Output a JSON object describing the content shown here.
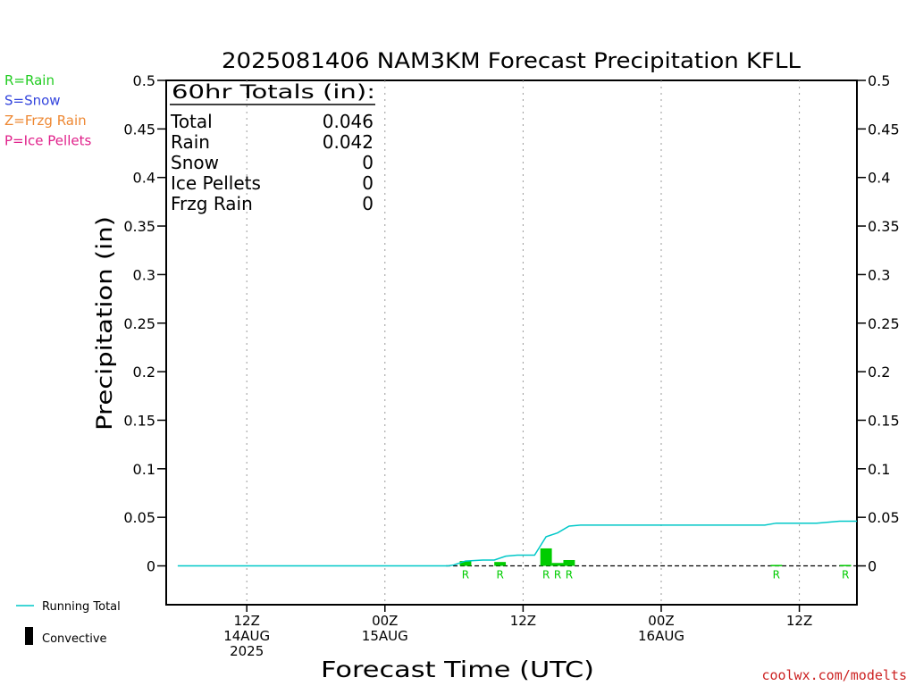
{
  "chart_data": {
    "type": "bar",
    "title": "2025081406 NAM3KM Forecast Precipitation KFLL",
    "xlabel": "Forecast Time (UTC)",
    "ylabel": "Precipitation (in)",
    "ylim": [
      -0.04,
      0.5
    ],
    "y_ticks": [
      0,
      0.05,
      0.1,
      0.15,
      0.2,
      0.25,
      0.3,
      0.35,
      0.4,
      0.45,
      0.5
    ],
    "y_tick_labels": [
      "0",
      "0.05",
      "0.1",
      "0.15",
      "0.2",
      "0.25",
      "0.3",
      "0.35",
      "0.4",
      "0.45",
      "0.5"
    ],
    "x_unit": "hours from 2025-08-14 06Z",
    "xlim": [
      -1,
      59
    ],
    "x_ticks": [
      {
        "x": 6,
        "line1": "12Z",
        "line2": "14AUG",
        "line3": "2025"
      },
      {
        "x": 18,
        "line1": "00Z",
        "line2": "15AUG",
        "line3": ""
      },
      {
        "x": 30,
        "line1": "12Z",
        "line2": "",
        "line3": ""
      },
      {
        "x": 42,
        "line1": "00Z",
        "line2": "16AUG",
        "line3": ""
      },
      {
        "x": 54,
        "line1": "12Z",
        "line2": "",
        "line3": ""
      }
    ],
    "grid": "dotted vertical at x ticks",
    "series": [
      {
        "name": "Rain",
        "color": "#00cc00",
        "bar_width_hours": 1,
        "bars": [
          {
            "x": 25,
            "value": 0.005,
            "label": "R"
          },
          {
            "x": 28,
            "value": 0.004,
            "label": "R"
          },
          {
            "x": 32,
            "value": 0.018,
            "label": "R"
          },
          {
            "x": 33,
            "value": 0.003,
            "label": "R"
          },
          {
            "x": 34,
            "value": 0.006,
            "label": "R"
          },
          {
            "x": 52,
            "value": 0.001,
            "label": "R"
          },
          {
            "x": 58,
            "value": 0.001,
            "label": "R"
          }
        ]
      },
      {
        "name": "Running Total",
        "type": "line",
        "color": "#00c8c8",
        "points": [
          [
            0,
            0
          ],
          [
            23.5,
            0
          ],
          [
            24,
            0.001
          ],
          [
            25,
            0.005
          ],
          [
            26.5,
            0.006
          ],
          [
            27.5,
            0.006
          ],
          [
            28.5,
            0.01
          ],
          [
            29.5,
            0.011
          ],
          [
            31,
            0.011
          ],
          [
            32,
            0.03
          ],
          [
            33,
            0.034
          ],
          [
            34,
            0.041
          ],
          [
            35,
            0.042
          ],
          [
            51,
            0.042
          ],
          [
            52,
            0.044
          ],
          [
            54,
            0.044
          ],
          [
            55.5,
            0.044
          ],
          [
            56.5,
            0.045
          ],
          [
            57.5,
            0.046
          ],
          [
            59,
            0.046
          ]
        ]
      }
    ],
    "zero_line": "dashed black at 0",
    "totals_box": {
      "heading": "60hr Totals (in):",
      "rows": [
        {
          "label": "Total",
          "value": "0.046"
        },
        {
          "label": "Rain",
          "value": "0.042"
        },
        {
          "label": "Snow",
          "value": "0"
        },
        {
          "label": "Ice Pellets",
          "value": "0"
        },
        {
          "label": "Frzg Rain",
          "value": "0"
        }
      ]
    }
  },
  "legend_top": [
    {
      "text": "R=Rain",
      "color": "#22cc22"
    },
    {
      "text": "S=Snow",
      "color": "#3344dd"
    },
    {
      "text": "Z=Frzg Rain",
      "color": "#ee8833"
    },
    {
      "text": "P=Ice Pellets",
      "color": "#e0208a"
    }
  ],
  "legend_bottom": {
    "running_total": "Running Total",
    "convective": "Convective",
    "running_total_color": "#00c8c8",
    "convective_color": "#000000"
  },
  "credit": {
    "text": "coolwx.com/modelts",
    "color": "#cc2222"
  }
}
